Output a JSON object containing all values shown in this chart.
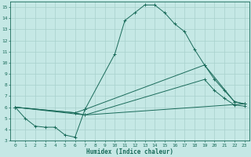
{
  "title": "",
  "xlabel": "Humidex (Indice chaleur)",
  "xlim": [
    -0.5,
    23.5
  ],
  "ylim": [
    3,
    15.5
  ],
  "xticks": [
    0,
    1,
    2,
    3,
    4,
    5,
    6,
    7,
    8,
    9,
    10,
    11,
    12,
    13,
    14,
    15,
    16,
    17,
    18,
    19,
    20,
    21,
    22,
    23
  ],
  "yticks": [
    3,
    4,
    5,
    6,
    7,
    8,
    9,
    10,
    11,
    12,
    13,
    14,
    15
  ],
  "background_color": "#c5e8e5",
  "grid_color": "#a8d0cc",
  "line_color": "#1a6b5a",
  "lines": [
    {
      "x": [
        0,
        1,
        2,
        3,
        4,
        5,
        6,
        7,
        10,
        11,
        12,
        13,
        14,
        15,
        16,
        17,
        18,
        19,
        22,
        23
      ],
      "y": [
        6,
        5,
        4.3,
        4.2,
        4.2,
        3.5,
        3.3,
        5.8,
        10.8,
        13.8,
        14.5,
        15.2,
        15.2,
        14.5,
        13.5,
        12.8,
        11.2,
        9.8,
        6.5,
        6.3
      ]
    },
    {
      "x": [
        0,
        6,
        7,
        19,
        20,
        21,
        22,
        23
      ],
      "y": [
        6,
        5.5,
        5.8,
        9.8,
        8.5,
        7.5,
        6.5,
        6.3
      ]
    },
    {
      "x": [
        0,
        6,
        7,
        19,
        20,
        21,
        22,
        23
      ],
      "y": [
        6,
        5.5,
        5.3,
        8.5,
        7.5,
        6.8,
        6.2,
        6.1
      ]
    },
    {
      "x": [
        0,
        7,
        23
      ],
      "y": [
        6,
        5.3,
        6.3
      ]
    }
  ]
}
